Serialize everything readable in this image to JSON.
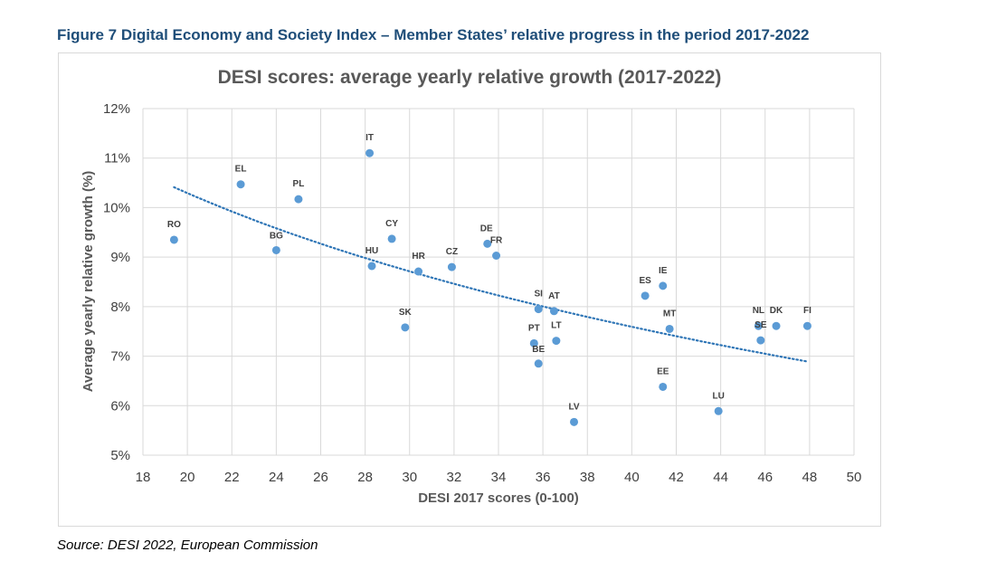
{
  "figure_caption": "Figure 7 Digital Economy and Society Index – Member States’ relative progress in the period 2017-2022",
  "source": "Source: DESI 2022, European Commission",
  "chart_data": {
    "type": "scatter",
    "title": "DESI scores: average yearly relative growth (2017-2022)",
    "xlabel": "DESI 2017 scores (0-100)",
    "ylabel": "Average yearly relative growth (%)",
    "xlim": [
      18,
      50
    ],
    "ylim": [
      5,
      12
    ],
    "x_ticks": [
      "18",
      "20",
      "22",
      "24",
      "26",
      "28",
      "30",
      "32",
      "34",
      "36",
      "38",
      "40",
      "42",
      "44",
      "46",
      "48",
      "50"
    ],
    "y_ticks": [
      "5%",
      "6%",
      "7%",
      "8%",
      "9%",
      "10%",
      "11%",
      "12%"
    ],
    "grid": true,
    "marker_color": "#5b9bd5",
    "trendline": {
      "style": "dotted",
      "color": "#2e75b6",
      "x_start": 19.4,
      "x_end": 47.9
    },
    "points": [
      {
        "label": "RO",
        "x": 19.4,
        "y": 9.35
      },
      {
        "label": "EL",
        "x": 22.4,
        "y": 10.47
      },
      {
        "label": "BG",
        "x": 24.0,
        "y": 9.14
      },
      {
        "label": "PL",
        "x": 25.0,
        "y": 10.17
      },
      {
        "label": "IT",
        "x": 28.2,
        "y": 11.1
      },
      {
        "label": "HU",
        "x": 28.3,
        "y": 8.82
      },
      {
        "label": "CY",
        "x": 29.2,
        "y": 9.37
      },
      {
        "label": "SK",
        "x": 29.8,
        "y": 7.58
      },
      {
        "label": "HR",
        "x": 30.4,
        "y": 8.71
      },
      {
        "label": "CZ",
        "x": 31.9,
        "y": 8.8
      },
      {
        "label": "DE",
        "x": 33.5,
        "y": 9.27
      },
      {
        "label": "FR",
        "x": 33.9,
        "y": 9.03
      },
      {
        "label": "PT",
        "x": 35.6,
        "y": 7.26
      },
      {
        "label": "SI",
        "x": 35.8,
        "y": 7.95
      },
      {
        "label": "BE",
        "x": 35.8,
        "y": 6.85
      },
      {
        "label": "AT",
        "x": 36.5,
        "y": 7.91
      },
      {
        "label": "LT",
        "x": 36.6,
        "y": 7.31
      },
      {
        "label": "LV",
        "x": 37.4,
        "y": 5.67
      },
      {
        "label": "ES",
        "x": 40.6,
        "y": 8.22
      },
      {
        "label": "IE",
        "x": 41.4,
        "y": 8.42
      },
      {
        "label": "EE",
        "x": 41.4,
        "y": 6.38
      },
      {
        "label": "MT",
        "x": 41.7,
        "y": 7.55
      },
      {
        "label": "LU",
        "x": 43.9,
        "y": 5.89
      },
      {
        "label": "NL",
        "x": 45.7,
        "y": 7.61
      },
      {
        "label": "SE",
        "x": 45.8,
        "y": 7.32
      },
      {
        "label": "DK",
        "x": 46.5,
        "y": 7.61
      },
      {
        "label": "FI",
        "x": 47.9,
        "y": 7.61
      }
    ]
  }
}
